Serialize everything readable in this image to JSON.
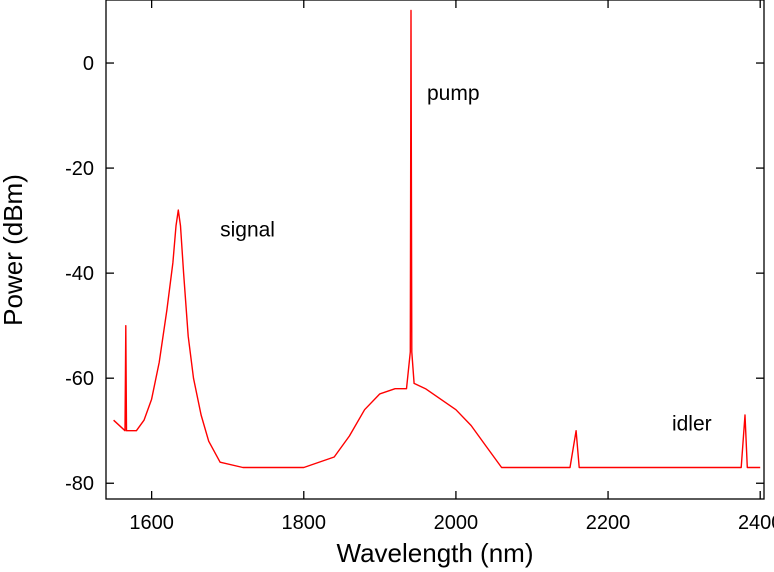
{
  "chart_data": {
    "type": "line",
    "xlabel": "Wavelength (nm)",
    "ylabel": "Power (dBm)",
    "xlim": [
      1540,
      2405
    ],
    "ylim": [
      -83,
      12
    ],
    "x_ticks": [
      1600,
      1800,
      2000,
      2200,
      2400
    ],
    "y_ticks": [
      0,
      -20,
      -40,
      -60,
      -80
    ],
    "grid": false,
    "line_color": "#ff0000",
    "series": [
      {
        "points": [
          [
            1550,
            -68
          ],
          [
            1565,
            -70
          ],
          [
            1566,
            -50
          ],
          [
            1567,
            -70
          ],
          [
            1580,
            -70
          ],
          [
            1590,
            -68
          ],
          [
            1600,
            -64
          ],
          [
            1610,
            -57
          ],
          [
            1620,
            -47
          ],
          [
            1628,
            -38
          ],
          [
            1632,
            -31
          ],
          [
            1635,
            -28
          ],
          [
            1638,
            -31
          ],
          [
            1642,
            -40
          ],
          [
            1648,
            -52
          ],
          [
            1655,
            -60
          ],
          [
            1665,
            -67
          ],
          [
            1675,
            -72
          ],
          [
            1690,
            -76
          ],
          [
            1720,
            -77
          ],
          [
            1760,
            -77
          ],
          [
            1800,
            -77
          ],
          [
            1840,
            -75
          ],
          [
            1860,
            -71
          ],
          [
            1880,
            -66
          ],
          [
            1900,
            -63
          ],
          [
            1920,
            -62
          ],
          [
            1935,
            -62
          ],
          [
            1940,
            -55
          ],
          [
            1941,
            10
          ],
          [
            1942,
            -55
          ],
          [
            1945,
            -61
          ],
          [
            1960,
            -62
          ],
          [
            1980,
            -64
          ],
          [
            2000,
            -66
          ],
          [
            2020,
            -69
          ],
          [
            2040,
            -73
          ],
          [
            2060,
            -77
          ],
          [
            2100,
            -77
          ],
          [
            2150,
            -77
          ],
          [
            2158,
            -70
          ],
          [
            2162,
            -77
          ],
          [
            2200,
            -77
          ],
          [
            2300,
            -77
          ],
          [
            2375,
            -77
          ],
          [
            2380,
            -67
          ],
          [
            2383,
            -77
          ],
          [
            2400,
            -77
          ]
        ]
      }
    ],
    "annotations": [
      {
        "text": "signal",
        "x": 1690,
        "y": -33
      },
      {
        "text": "pump",
        "x": 1962,
        "y": -7
      },
      {
        "text": "idler",
        "x": 2284,
        "y": -70
      }
    ]
  }
}
